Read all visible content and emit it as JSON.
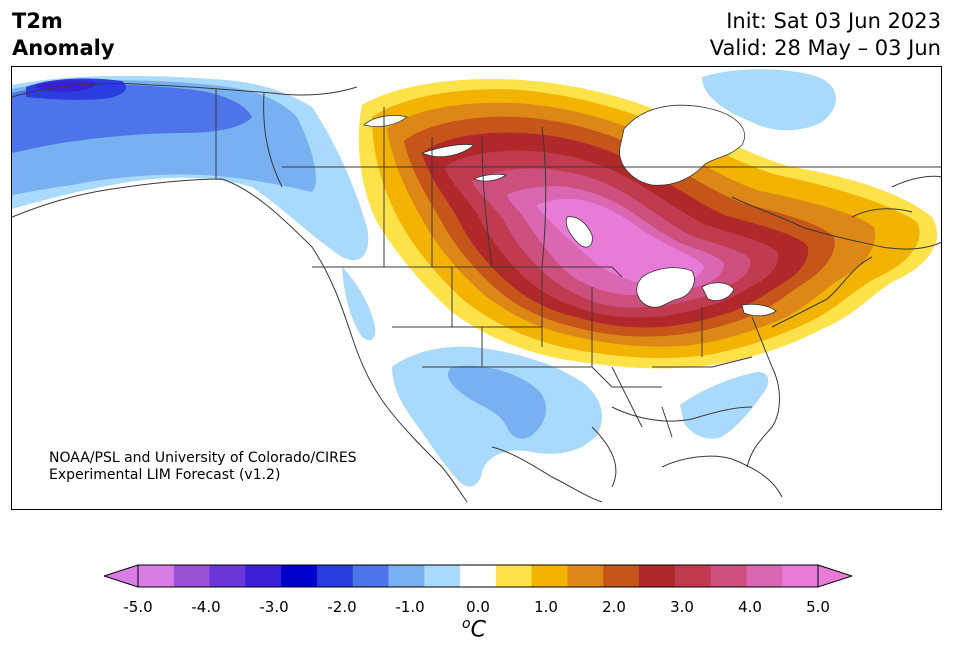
{
  "title": {
    "line1": "T2m",
    "line2": "Anomaly",
    "init": "Init: Sat 03 Jun 2023",
    "valid": "Valid: 28 May – 03 Jun"
  },
  "credit": {
    "line1": "NOAA/PSL and University of Colorado/CIRES",
    "line2": "Experimental LIM Forecast (v1.2)"
  },
  "colorbar": {
    "unit_sup": "o",
    "unit_letter": "C",
    "levels": [
      -5.0,
      -4.5,
      -4.0,
      -3.5,
      -3.0,
      -2.5,
      -2.0,
      -1.5,
      -1.0,
      -0.5,
      0.5,
      1.0,
      1.5,
      2.0,
      2.5,
      3.0,
      3.5,
      4.0,
      4.5,
      5.0
    ],
    "colors": [
      "#d97ce6",
      "#9b51d6",
      "#6a36d9",
      "#3a1fd6",
      "#0000cc",
      "#2a3edf",
      "#4d74e8",
      "#78b0f2",
      "#a9dafc",
      "#ffffff",
      "#fde24a",
      "#f2b303",
      "#dc8716",
      "#c55518",
      "#b1282a",
      "#c03a50",
      "#cc4f7d",
      "#db66b2",
      "#e87bd8"
    ],
    "under_color": "#d97ce6",
    "over_color": "#e87bd8",
    "tick_labels": [
      "-5.0",
      "-4.0",
      "-3.0",
      "-2.0",
      "-1.0",
      "0.0",
      "1.0",
      "2.0",
      "3.0",
      "4.0",
      "5.0"
    ]
  },
  "map": {
    "features": [
      {
        "name": "alaska-cold-anomaly",
        "level": -1.0
      },
      {
        "name": "southwest-cold-anomaly",
        "level": -1.0
      },
      {
        "name": "southeast-cold-anomaly",
        "level": -1.0
      },
      {
        "name": "northern-canada-cold-anomaly",
        "level": -1.0
      },
      {
        "name": "canada-midwest-warm-anomaly",
        "level": 5.0
      }
    ]
  }
}
